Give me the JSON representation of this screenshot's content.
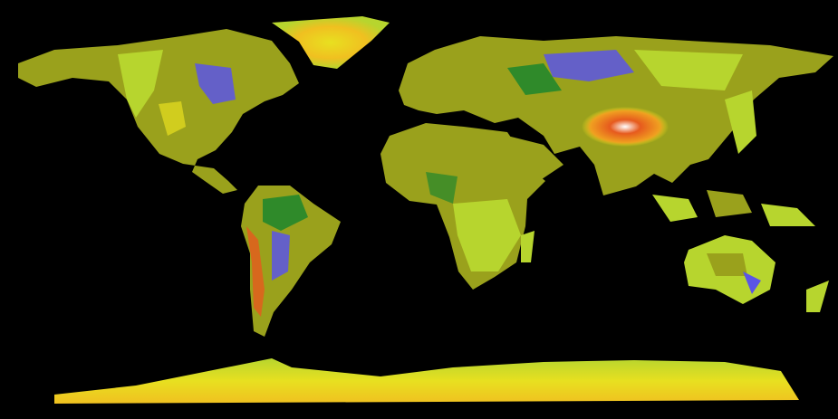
{
  "map": {
    "projection": "equirectangular",
    "subject": "world elevation",
    "colors": {
      "ocean": "#000000",
      "lowland_water": "#5a55e6",
      "low": "#9aa11c",
      "mid": "#b7d52e",
      "high_green": "#2f8a2a",
      "high": "#e8e020",
      "peak": "#e65a1e",
      "summit": "#ffffff"
    }
  }
}
